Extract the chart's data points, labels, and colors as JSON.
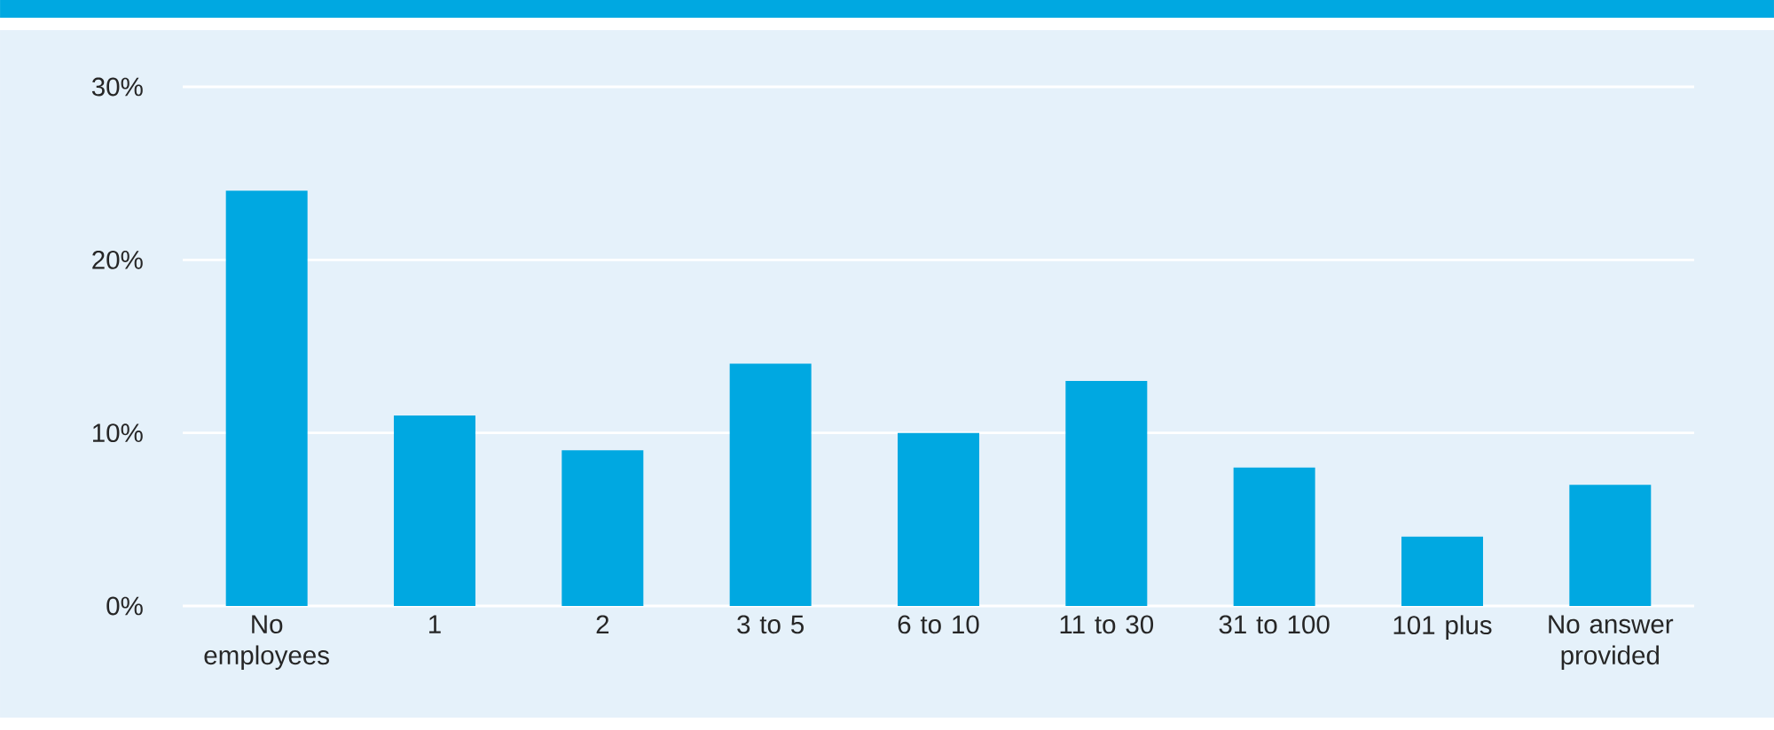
{
  "chart_data": {
    "type": "bar",
    "categories": [
      "No employees",
      "1",
      "2",
      "3 to 5",
      "6 to 10",
      "11 to 30",
      "31 to 100",
      "101 plus",
      "No answer provided"
    ],
    "values": [
      24,
      11,
      9,
      14,
      10,
      13,
      8,
      4,
      7
    ],
    "color": "#00a8e1",
    "ylim": [
      0,
      30
    ],
    "yticks": [
      {
        "value": 0,
        "label": "0%"
      },
      {
        "value": 10,
        "label": "10%"
      },
      {
        "value": 20,
        "label": "20%"
      },
      {
        "value": 30,
        "label": "30%"
      }
    ],
    "grid": "y"
  }
}
